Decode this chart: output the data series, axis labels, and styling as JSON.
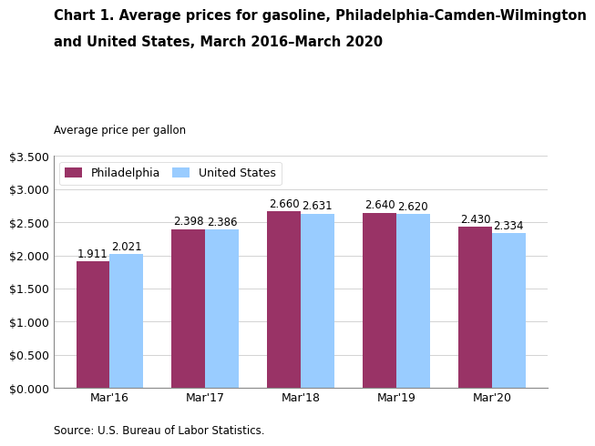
{
  "title_line1": "Chart 1. Average prices for gasoline, Philadelphia-Camden-Wilmington",
  "title_line2": "and United States, March 2016–March 2020",
  "ylabel": "Average price per gallon",
  "source": "Source: U.S. Bureau of Labor Statistics.",
  "categories": [
    "Mar'16",
    "Mar'17",
    "Mar'18",
    "Mar'19",
    "Mar'20"
  ],
  "philadelphia": [
    1.911,
    2.398,
    2.66,
    2.64,
    2.43
  ],
  "us": [
    2.021,
    2.386,
    2.631,
    2.62,
    2.334
  ],
  "philly_color": "#993366",
  "us_color": "#99CCFF",
  "philly_label": "Philadelphia",
  "us_label": "United States",
  "ylim": [
    0,
    3.5
  ],
  "yticks": [
    0.0,
    0.5,
    1.0,
    1.5,
    2.0,
    2.5,
    3.0,
    3.5
  ],
  "ytick_labels": [
    "$0.000",
    "$0.500",
    "$1.000",
    "$1.500",
    "$2.000",
    "$2.500",
    "$3.000",
    "$3.500"
  ],
  "bar_width": 0.35,
  "title_fontsize": 10.5,
  "axis_label_fontsize": 8.5,
  "tick_fontsize": 9,
  "value_fontsize": 8.5,
  "legend_fontsize": 9,
  "source_fontsize": 8.5,
  "background_color": "#ffffff"
}
